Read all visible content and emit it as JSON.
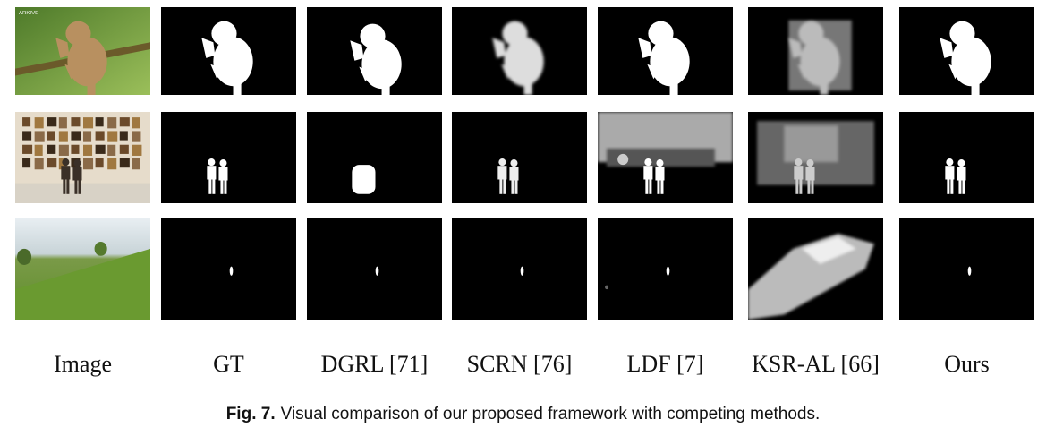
{
  "figure": {
    "watermark": "ARKIVE",
    "columns": [
      "Image",
      "GT",
      "DGRL [71]",
      "SCRN [76]",
      "LDF [7]",
      "KSR-AL [66]",
      "Ours"
    ],
    "caption": {
      "label": "Fig. 7.",
      "text": "Visual comparison of our proposed framework with competing methods."
    }
  }
}
